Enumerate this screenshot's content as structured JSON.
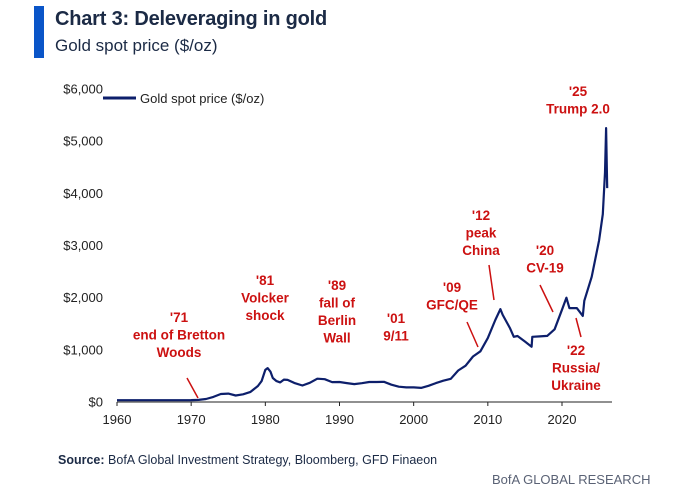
{
  "header": {
    "title": "Chart 3: Deleveraging in gold",
    "subtitle": "Gold spot price ($/oz)"
  },
  "footer": {
    "source_label": "Source:",
    "source_text": "BofA Global Investment Strategy, Bloomberg, GFD Finaeon",
    "brand": "BofA GLOBAL RESEARCH"
  },
  "colors": {
    "series": "#0d1f6b",
    "annotation": "#cc1111",
    "axis": "#222222",
    "accent": "#0a55c8"
  },
  "chart_data": {
    "type": "line",
    "title": "Chart 3: Deleveraging in gold",
    "subtitle": "Gold spot price ($/oz)",
    "xlabel": "",
    "ylabel": "",
    "xlim": [
      1960,
      2027
    ],
    "ylim": [
      0,
      6000
    ],
    "grid": false,
    "legend_position": "top-left",
    "x_ticks": [
      1960,
      1970,
      1980,
      1990,
      2000,
      2010,
      2020
    ],
    "x_tick_labels": [
      "1960",
      "1970",
      "1980",
      "1990",
      "2000",
      "2010",
      "2020"
    ],
    "y_ticks": [
      0,
      1000,
      2000,
      3000,
      4000,
      5000,
      6000
    ],
    "y_tick_labels": [
      "$0",
      "$1,000",
      "$2,000",
      "$3,000",
      "$4,000",
      "$5,000",
      "$6,000"
    ],
    "series": [
      {
        "name": "Gold spot price ($/oz)",
        "x": [
          1960,
          1965,
          1970,
          1971,
          1972,
          1973,
          1974,
          1975,
          1976,
          1977,
          1978,
          1979,
          1979.5,
          1980,
          1980.3,
          1980.7,
          1981,
          1981.5,
          1982,
          1982.5,
          1983,
          1984,
          1985,
          1986,
          1987,
          1988,
          1989,
          1990,
          1991,
          1992,
          1993,
          1994,
          1995,
          1996,
          1997,
          1998,
          1999,
          2000,
          2001,
          2002,
          2003,
          2004,
          2005,
          2006,
          2007,
          2008,
          2009,
          2010,
          2011,
          2011.7,
          2012,
          2013,
          2013.5,
          2014,
          2015,
          2015.9,
          2016,
          2017,
          2018,
          2019,
          2020,
          2020.6,
          2021,
          2022,
          2022.8,
          2023,
          2024,
          2025,
          2025.5,
          2025.8,
          2025.95,
          2026.1
        ],
        "y": [
          35,
          35,
          36,
          41,
          58,
          97,
          154,
          161,
          125,
          148,
          193,
          307,
          400,
          615,
          650,
          580,
          460,
          400,
          376,
          430,
          424,
          361,
          317,
          368,
          447,
          437,
          381,
          383,
          362,
          344,
          360,
          384,
          384,
          388,
          331,
          294,
          279,
          279,
          271,
          310,
          363,
          409,
          444,
          603,
          695,
          872,
          972,
          1224,
          1571,
          1780,
          1669,
          1411,
          1250,
          1266,
          1160,
          1060,
          1250,
          1257,
          1268,
          1393,
          1770,
          2000,
          1800,
          1800,
          1650,
          1940,
          2400,
          3100,
          3600,
          4400,
          5250,
          4100
        ]
      }
    ],
    "annotations": [
      {
        "lines": [
          "'71",
          "end of Bretton",
          "Woods"
        ],
        "x": 1971
      },
      {
        "lines": [
          "'81",
          "Volcker",
          "shock"
        ],
        "x": 1981
      },
      {
        "lines": [
          "'89",
          "fall of",
          "Berlin",
          "Wall"
        ],
        "x": 1989
      },
      {
        "lines": [
          "'01",
          "9/11"
        ],
        "x": 2001
      },
      {
        "lines": [
          "'09",
          "GFC/QE"
        ],
        "x": 2009
      },
      {
        "lines": [
          "'12",
          "peak",
          "China"
        ],
        "x": 2012
      },
      {
        "lines": [
          "'20",
          "CV-19"
        ],
        "x": 2020
      },
      {
        "lines": [
          "'22",
          "Russia/",
          "Ukraine"
        ],
        "x": 2022
      },
      {
        "lines": [
          "'25",
          "Trump 2.0"
        ],
        "x": 2025
      }
    ]
  }
}
